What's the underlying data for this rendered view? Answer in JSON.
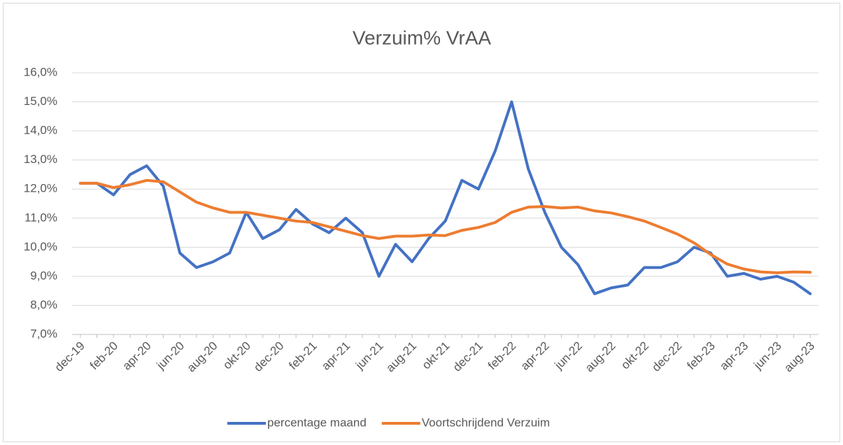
{
  "chart_data": {
    "type": "line",
    "title": "Verzuim% VrAA",
    "categories": [
      "dec-19",
      null,
      "feb-20",
      null,
      "apr-20",
      null,
      "jun-20",
      null,
      "aug-20",
      null,
      "okt-20",
      null,
      "dec-20",
      null,
      "feb-21",
      null,
      "apr-21",
      null,
      "jun-21",
      null,
      "aug-21",
      null,
      "okt-21",
      null,
      "dec-21",
      null,
      "feb-22",
      null,
      "apr-22",
      null,
      "jun-22",
      null,
      "aug-22",
      null,
      "okt-22",
      null,
      "dec-22",
      null,
      "feb-23",
      null,
      "apr-23",
      null,
      "jun-23",
      null,
      "aug-23"
    ],
    "series": [
      {
        "name": "percentage maand",
        "color": "#4472c4",
        "values": [
          12.2,
          12.2,
          11.8,
          12.5,
          12.8,
          12.1,
          9.8,
          9.3,
          9.5,
          9.8,
          11.2,
          10.3,
          10.6,
          11.3,
          10.8,
          10.5,
          11.0,
          10.5,
          9.0,
          10.1,
          9.5,
          10.3,
          10.9,
          12.3,
          12.0,
          13.3,
          15.0,
          12.7,
          11.2,
          10.0,
          9.4,
          8.4,
          8.6,
          8.7,
          9.3,
          9.3,
          9.5,
          10.0,
          9.8,
          9.0,
          9.1,
          8.9,
          9.0,
          8.8,
          8.4
        ]
      },
      {
        "name": "Voortschrijdend Verzuim",
        "color": "#ed7d31",
        "values": [
          12.2,
          12.2,
          12.05,
          12.15,
          12.3,
          12.25,
          11.9,
          11.55,
          11.35,
          11.2,
          11.2,
          11.1,
          11.0,
          10.9,
          10.85,
          10.7,
          10.55,
          10.4,
          10.3,
          10.38,
          10.38,
          10.42,
          10.4,
          10.58,
          10.68,
          10.85,
          11.2,
          11.38,
          11.4,
          11.35,
          11.38,
          11.25,
          11.18,
          11.05,
          10.9,
          10.68,
          10.45,
          10.15,
          9.75,
          9.42,
          9.25,
          9.15,
          9.12,
          9.15,
          9.14
        ]
      }
    ],
    "ylim": [
      7,
      16
    ],
    "yticks": [
      {
        "value": 7,
        "label": "7,0%"
      },
      {
        "value": 8,
        "label": "8,0%"
      },
      {
        "value": 9,
        "label": "9,0%"
      },
      {
        "value": 10,
        "label": "10,0%"
      },
      {
        "value": 11,
        "label": "11,0%"
      },
      {
        "value": 12,
        "label": "12,0%"
      },
      {
        "value": 13,
        "label": "13,0%"
      },
      {
        "value": 14,
        "label": "14,0%"
      },
      {
        "value": 15,
        "label": "15,0%"
      },
      {
        "value": 16,
        "label": "16,0%"
      }
    ],
    "grid": true,
    "legend": "bottom"
  }
}
